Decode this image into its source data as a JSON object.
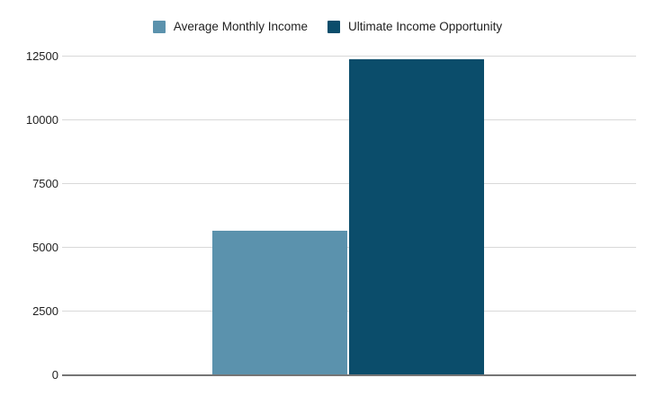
{
  "chart_data": {
    "type": "bar",
    "title": "",
    "xlabel": "",
    "ylabel": "",
    "categories": [
      ""
    ],
    "series": [
      {
        "name": "Average Monthly Income",
        "values": [
          5670
        ],
        "color": "#5b92ad"
      },
      {
        "name": "Ultimate Income Opportunity",
        "values": [
          12400
        ],
        "color": "#0b4d6b"
      }
    ],
    "ylim": [
      0,
      12500
    ],
    "y_ticks": [
      0,
      2500,
      5000,
      7500,
      10000,
      12500
    ],
    "y_tick_labels": [
      "0",
      "2500",
      "5000",
      "7500",
      "10000",
      "12500"
    ],
    "grid": "horizontal",
    "legend_position": "top",
    "background_color": "#ffffff",
    "gridline_color": "#d9d9d9",
    "axis_line_color": "#757575",
    "text_color": "#1f1f1f"
  }
}
